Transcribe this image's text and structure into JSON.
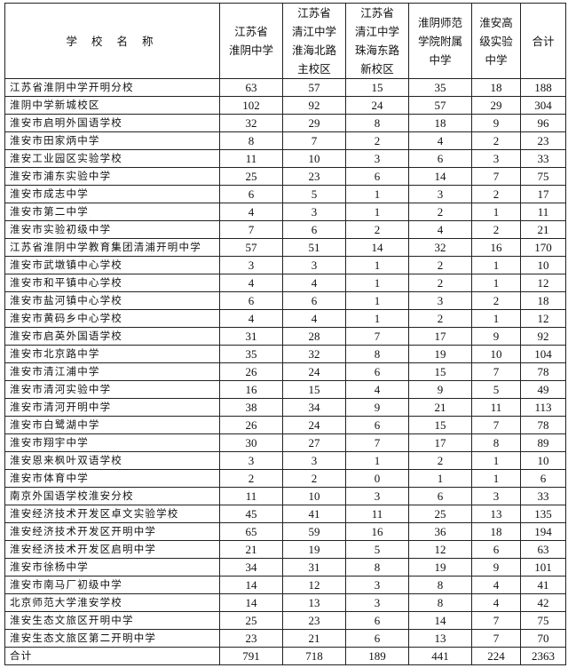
{
  "headers": [
    "学 校 名 称",
    "江苏省\n淮阴中学",
    "江苏省\n清江中学\n淮海北路\n主校区",
    "江苏省\n清江中学\n珠海东路\n新校区",
    "淮阴师范\n学院附属\n中学",
    "淮安高\n级实验\n中学",
    "合计"
  ],
  "rows": [
    {
      "name": "江苏省淮阴中学开明分校",
      "v": [
        "63",
        "57",
        "15",
        "35",
        "18",
        "188"
      ]
    },
    {
      "name": "淮阴中学新城校区",
      "v": [
        "102",
        "92",
        "24",
        "57",
        "29",
        "304"
      ]
    },
    {
      "name": "淮安市启明外国语学校",
      "v": [
        "32",
        "29",
        "8",
        "18",
        "9",
        "96"
      ]
    },
    {
      "name": "淮安市田家炳中学",
      "v": [
        "8",
        "7",
        "2",
        "4",
        "2",
        "23"
      ]
    },
    {
      "name": "淮安工业园区实验学校",
      "v": [
        "11",
        "10",
        "3",
        "6",
        "3",
        "33"
      ]
    },
    {
      "name": "淮安市浦东实验中学",
      "v": [
        "25",
        "23",
        "6",
        "14",
        "7",
        "75"
      ]
    },
    {
      "name": "淮安市成志中学",
      "v": [
        "6",
        "5",
        "1",
        "3",
        "2",
        "17"
      ]
    },
    {
      "name": "淮安市第二中学",
      "v": [
        "4",
        "3",
        "1",
        "2",
        "1",
        "11"
      ]
    },
    {
      "name": "淮安市实验初级中学",
      "v": [
        "7",
        "6",
        "2",
        "4",
        "2",
        "21"
      ]
    },
    {
      "name": "江苏省淮阴中学教育集团清浦开明中学",
      "v": [
        "57",
        "51",
        "14",
        "32",
        "16",
        "170"
      ]
    },
    {
      "name": "淮安市武墩镇中心学校",
      "v": [
        "3",
        "3",
        "1",
        "2",
        "1",
        "10"
      ]
    },
    {
      "name": "淮安市和平镇中心学校",
      "v": [
        "4",
        "4",
        "1",
        "2",
        "1",
        "12"
      ]
    },
    {
      "name": "淮安市盐河镇中心学校",
      "v": [
        "6",
        "6",
        "1",
        "3",
        "2",
        "18"
      ]
    },
    {
      "name": "淮安市黄码乡中心学校",
      "v": [
        "4",
        "4",
        "1",
        "2",
        "1",
        "12"
      ]
    },
    {
      "name": "淮安市启英外国语学校",
      "v": [
        "31",
        "28",
        "7",
        "17",
        "9",
        "92"
      ]
    },
    {
      "name": "淮安市北京路中学",
      "v": [
        "35",
        "32",
        "8",
        "19",
        "10",
        "104"
      ]
    },
    {
      "name": "淮安市清江浦中学",
      "v": [
        "26",
        "24",
        "6",
        "15",
        "7",
        "78"
      ]
    },
    {
      "name": "淮安市清河实验中学",
      "v": [
        "16",
        "15",
        "4",
        "9",
        "5",
        "49"
      ]
    },
    {
      "name": "淮安市清河开明中学",
      "v": [
        "38",
        "34",
        "9",
        "21",
        "11",
        "113"
      ]
    },
    {
      "name": "淮安市白鹭湖中学",
      "v": [
        "26",
        "24",
        "6",
        "15",
        "7",
        "78"
      ]
    },
    {
      "name": "淮安市翔宇中学",
      "v": [
        "30",
        "27",
        "7",
        "17",
        "8",
        "89"
      ]
    },
    {
      "name": "淮安恩来枫叶双语学校",
      "v": [
        "3",
        "3",
        "1",
        "2",
        "1",
        "10"
      ]
    },
    {
      "name": "淮安市体育中学",
      "v": [
        "2",
        "2",
        "0",
        "1",
        "1",
        "6"
      ]
    },
    {
      "name": "南京外国语学校淮安分校",
      "v": [
        "11",
        "10",
        "3",
        "6",
        "3",
        "33"
      ]
    },
    {
      "name": "淮安经济技术开发区卓文实验学校",
      "v": [
        "45",
        "41",
        "11",
        "25",
        "13",
        "135"
      ]
    },
    {
      "name": "淮安经济技术开发区开明中学",
      "v": [
        "65",
        "59",
        "16",
        "36",
        "18",
        "194"
      ]
    },
    {
      "name": "淮安经济技术开发区启明中学",
      "v": [
        "21",
        "19",
        "5",
        "12",
        "6",
        "63"
      ]
    },
    {
      "name": "淮安市徐杨中学",
      "v": [
        "34",
        "31",
        "8",
        "19",
        "9",
        "101"
      ]
    },
    {
      "name": "淮安市南马厂初级中学",
      "v": [
        "14",
        "12",
        "3",
        "8",
        "4",
        "41"
      ]
    },
    {
      "name": "北京师范大学淮安学校",
      "v": [
        "14",
        "13",
        "3",
        "8",
        "4",
        "42"
      ]
    },
    {
      "name": "淮安生态文旅区开明中学",
      "v": [
        "25",
        "23",
        "6",
        "14",
        "7",
        "75"
      ]
    },
    {
      "name": "淮安生态文旅区第二开明中学",
      "v": [
        "23",
        "21",
        "6",
        "13",
        "7",
        "70"
      ]
    },
    {
      "name": "合计",
      "v": [
        "791",
        "718",
        "189",
        "441",
        "224",
        "2363"
      ]
    }
  ]
}
